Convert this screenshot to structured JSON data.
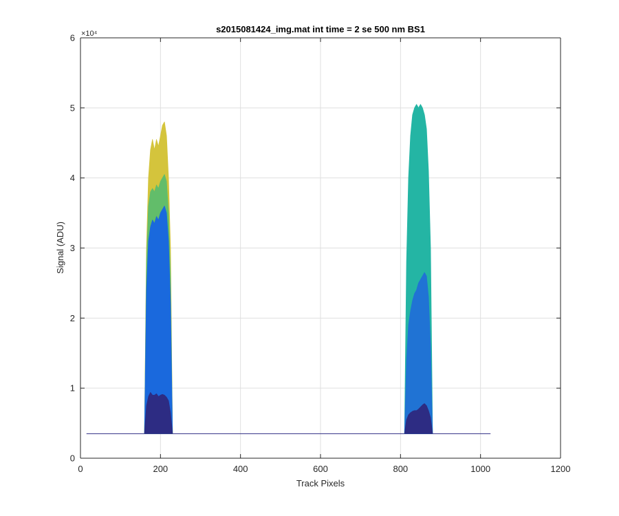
{
  "chart_data": {
    "type": "area",
    "title": "s2015081424_img.mat int time = 2 se  500 nm BS1",
    "xlabel": "Track Pixels",
    "ylabel": "Signal (ADU)",
    "y_multiplier_label": "×10⁴",
    "xlim": [
      0,
      1200
    ],
    "ylim": [
      0,
      60000
    ],
    "x_ticks": [
      0,
      200,
      400,
      600,
      800,
      1000,
      1200
    ],
    "y_ticks": [
      0,
      1,
      2,
      3,
      4,
      5,
      6
    ],
    "y_tick_scale": 10000,
    "grid": true,
    "baseline": 3500,
    "baseline_x_range": [
      15,
      1025
    ],
    "series": [
      {
        "color": "#d4c43c",
        "x": [
          160,
          165,
          170,
          175,
          180,
          185,
          190,
          195,
          200,
          205,
          210,
          215,
          220,
          225,
          230
        ],
        "y": [
          3500,
          30000,
          40000,
          44000,
          45500,
          44000,
          45500,
          44500,
          46000,
          47500,
          48000,
          46000,
          40000,
          30000,
          3500
        ]
      },
      {
        "color": "#62bd6a",
        "x": [
          160,
          165,
          170,
          175,
          180,
          185,
          190,
          195,
          200,
          205,
          210,
          215,
          220,
          225,
          230
        ],
        "y": [
          3500,
          28000,
          36000,
          38000,
          38500,
          38000,
          39000,
          38500,
          39500,
          40000,
          40500,
          39500,
          35000,
          26000,
          3500
        ]
      },
      {
        "color": "#1a69dd",
        "x": [
          160,
          165,
          170,
          175,
          180,
          185,
          190,
          195,
          200,
          205,
          210,
          215,
          220,
          225,
          230
        ],
        "y": [
          3500,
          24000,
          31000,
          33000,
          34000,
          33500,
          34500,
          34000,
          35000,
          35500,
          36000,
          35000,
          31000,
          22000,
          3500
        ]
      },
      {
        "color": "#2d2c83",
        "x": [
          160,
          165,
          170,
          175,
          180,
          185,
          190,
          195,
          200,
          205,
          210,
          215,
          220,
          225,
          230
        ],
        "y": [
          3500,
          7500,
          8800,
          9400,
          9000,
          9000,
          9200,
          8800,
          9000,
          9100,
          9000,
          8700,
          8200,
          6500,
          3500
        ]
      },
      {
        "color": "#24b5a4",
        "x": [
          810,
          815,
          820,
          825,
          830,
          835,
          840,
          845,
          850,
          855,
          860,
          865,
          870,
          875,
          880
        ],
        "y": [
          3500,
          28000,
          40000,
          46000,
          49000,
          50000,
          50500,
          50000,
          50500,
          50000,
          49000,
          47000,
          41000,
          30000,
          3500
        ]
      },
      {
        "color": "#2073d4",
        "x": [
          810,
          815,
          820,
          825,
          830,
          835,
          840,
          845,
          850,
          855,
          860,
          865,
          870,
          875,
          880
        ],
        "y": [
          3500,
          14000,
          19000,
          21000,
          22500,
          23500,
          24000,
          25000,
          25500,
          26000,
          26500,
          26000,
          23000,
          16000,
          3500
        ]
      },
      {
        "color": "#2d2c83",
        "x": [
          810,
          815,
          820,
          825,
          830,
          835,
          840,
          845,
          850,
          855,
          860,
          865,
          870,
          875,
          880
        ],
        "y": [
          3500,
          5500,
          6200,
          6500,
          6700,
          6800,
          6800,
          7000,
          7300,
          7600,
          7800,
          7500,
          6800,
          5800,
          3500
        ]
      }
    ]
  }
}
